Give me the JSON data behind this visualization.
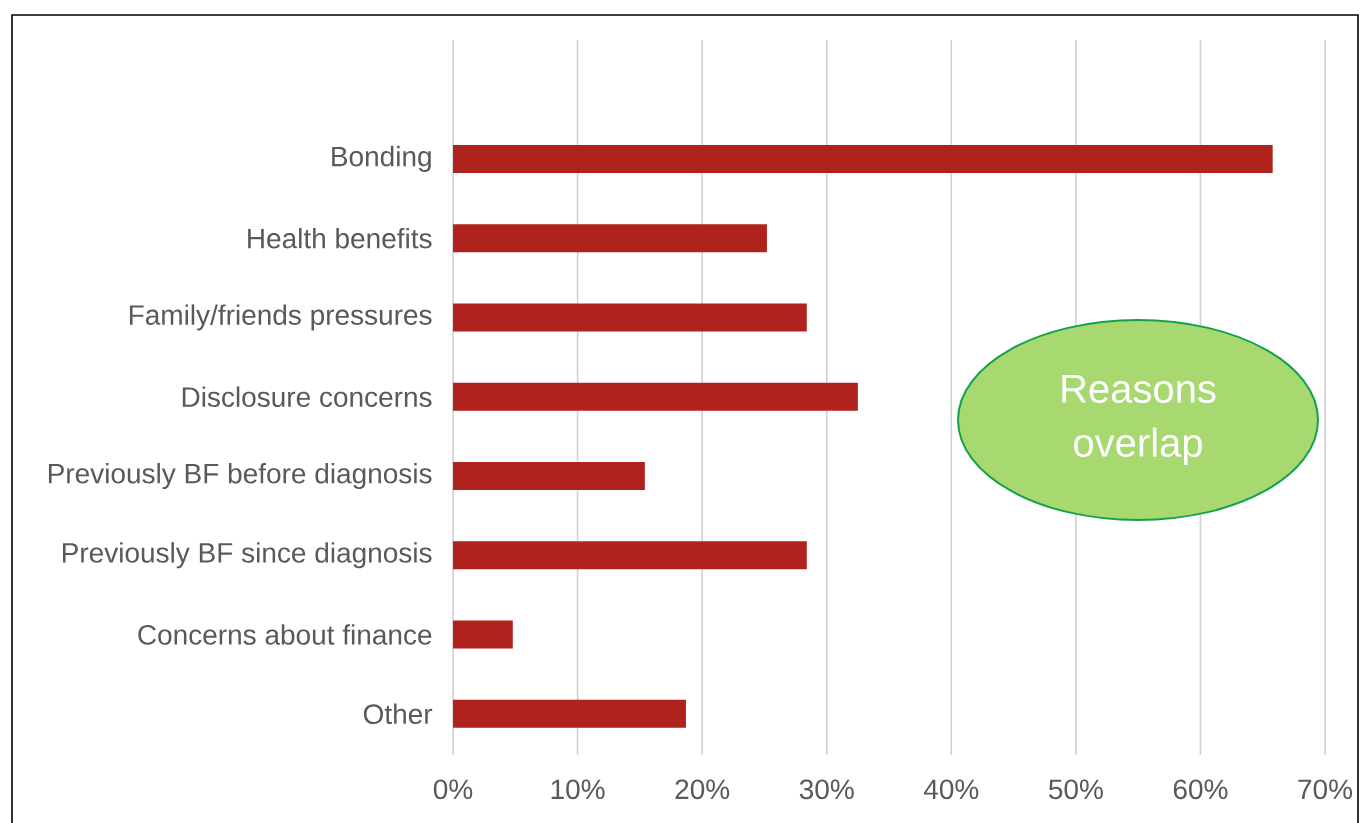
{
  "chart_data": {
    "type": "bar",
    "orientation": "horizontal",
    "categories": [
      "Bonding",
      "Health benefits",
      "Family/friends pressures",
      "Disclosure concerns",
      "Previously BF before diagnosis",
      "Previously BF since diagnosis",
      "Concerns about finance",
      "Other"
    ],
    "values": [
      65.8,
      25.2,
      28.4,
      32.5,
      15.4,
      28.4,
      4.8,
      18.7
    ],
    "color": "#b0221e",
    "xlim": [
      0,
      70
    ],
    "xticks": [
      {
        "value": 0,
        "label": "0%"
      },
      {
        "value": 10,
        "label": "10%"
      },
      {
        "value": 20,
        "label": "20%"
      },
      {
        "value": 30,
        "label": "30%"
      },
      {
        "value": 40,
        "label": "40%"
      },
      {
        "value": 50,
        "label": "50%"
      },
      {
        "value": 60,
        "label": "60%"
      },
      {
        "value": 70,
        "label": "70%"
      }
    ],
    "grid": "x",
    "annotations": [
      "Reasons overlap"
    ]
  }
}
